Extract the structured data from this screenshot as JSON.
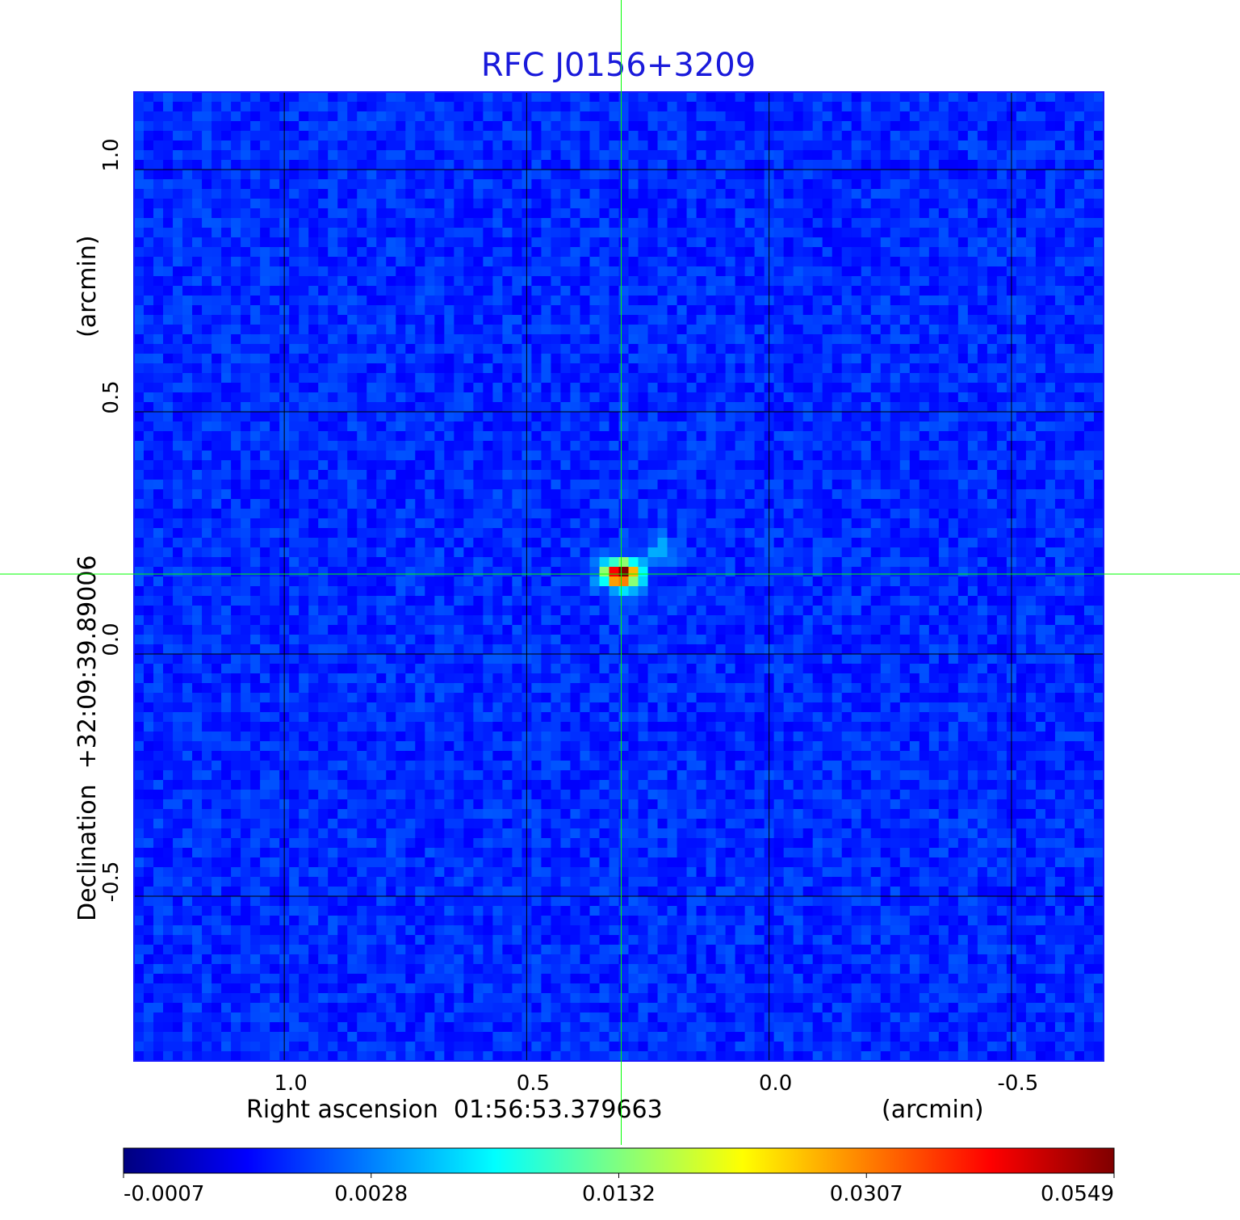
{
  "chart_data": {
    "type": "heatmap",
    "title": "RFC J0156+3209",
    "xlabel": "Right ascension  01:56:53.379663",
    "xunit": "(arcmin)",
    "ylabel": "Declination  +32:09:39.89006",
    "yunit": "(arcmin)",
    "xlim": [
      1.31,
      -0.69
    ],
    "ylim": [
      -0.84,
      1.16
    ],
    "x_ticks": [
      1.0,
      0.5,
      0.0,
      -0.5
    ],
    "x_tick_labels": [
      "1.0",
      "0.5",
      "0.0",
      "-0.5"
    ],
    "y_ticks": [
      1.0,
      0.5,
      0.0,
      -0.5
    ],
    "y_tick_labels": [
      "1.0",
      "0.5",
      "0.0",
      "-0.5"
    ],
    "grid": true,
    "crosshair": {
      "x": 0.305,
      "y": 0.165,
      "color": "#00ff00"
    },
    "source": {
      "x": 0.305,
      "y": 0.165,
      "peak": 0.0549
    },
    "colormap": "jet",
    "colorbar": {
      "ticks": [
        -0.0007,
        0.0028,
        0.0132,
        0.0307,
        0.0549
      ],
      "tick_labels": [
        "-0.0007",
        "0.0028",
        "0.0132",
        "0.0307",
        "0.0549"
      ],
      "placement": "bottom"
    },
    "title_color": "#1a1adb"
  }
}
